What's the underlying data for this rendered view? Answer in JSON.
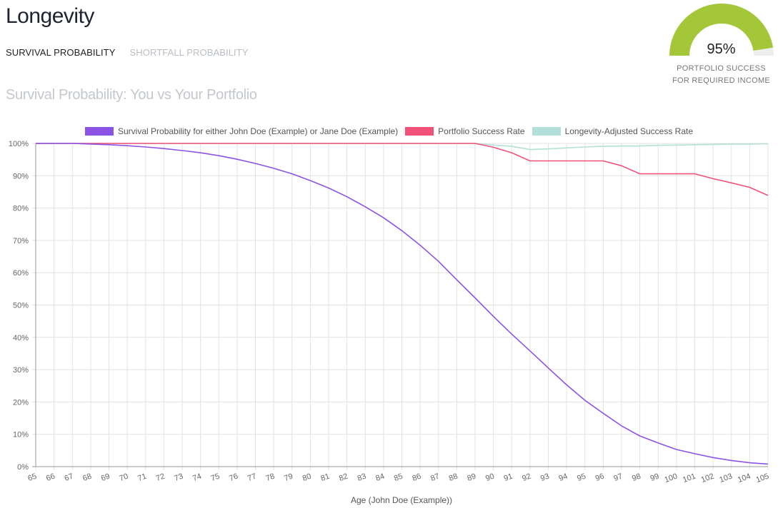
{
  "page": {
    "title": "Longevity",
    "tabs": [
      {
        "label": "SURVIVAL PROBABILITY",
        "active": true
      },
      {
        "label": "SHORTFALL PROBABILITY",
        "active": false
      }
    ],
    "chart_title": "Survival Probability: You vs Your Portfolio"
  },
  "gauge": {
    "value_text": "95%",
    "value": 0.95,
    "label_line1": "PORTFOLIO SUCCESS",
    "label_line2": "FOR REQUIRED INCOME",
    "fill_color": "#a4c639",
    "track_color": "#eeeeee"
  },
  "chart_data": {
    "type": "line",
    "xlabel": "Age (John Doe (Example))",
    "ylabel": "",
    "x": [
      65,
      66,
      67,
      68,
      69,
      70,
      71,
      72,
      73,
      74,
      75,
      76,
      77,
      78,
      79,
      80,
      81,
      82,
      83,
      84,
      85,
      86,
      87,
      88,
      89,
      90,
      91,
      92,
      93,
      94,
      95,
      96,
      97,
      98,
      99,
      100,
      101,
      102,
      103,
      104,
      105
    ],
    "x_tick_labels": [
      "65",
      "66",
      "67",
      "68",
      "69",
      "70",
      "71",
      "72",
      "73",
      "74",
      "75",
      "76",
      "77",
      "78",
      "79",
      "80",
      "81",
      "82",
      "83",
      "84",
      "85",
      "86",
      "87",
      "88",
      "89",
      "90",
      "91",
      "92",
      "93",
      "94",
      "95",
      "96",
      "97",
      "98",
      "99",
      "100",
      "101",
      "102",
      "103",
      "104",
      "105"
    ],
    "ylim": [
      0,
      100
    ],
    "y_ticks": [
      0,
      10,
      20,
      30,
      40,
      50,
      60,
      70,
      80,
      90,
      100
    ],
    "y_tick_labels": [
      "0%",
      "10%",
      "20%",
      "30%",
      "40%",
      "50%",
      "60%",
      "70%",
      "80%",
      "90%",
      "100%"
    ],
    "grid": true,
    "legend_position": "top",
    "series": [
      {
        "name": "Survival Probability for either John Doe (Example) or Jane Doe (Example)",
        "color": "#8c54e6",
        "values": [
          100,
          100,
          100,
          99.8,
          99.6,
          99.3,
          98.9,
          98.4,
          97.8,
          97.1,
          96.2,
          95.1,
          93.8,
          92.3,
          90.6,
          88.5,
          86.2,
          83.5,
          80.4,
          77.0,
          73.0,
          68.5,
          63.5,
          57.8,
          52.2,
          46.5,
          41.0,
          35.8,
          30.5,
          25.3,
          20.5,
          16.5,
          12.6,
          9.5,
          7.3,
          5.3,
          4.0,
          2.8,
          1.9,
          1.2,
          0.8
        ]
      },
      {
        "name": "Portfolio Success Rate",
        "color": "#f2527a",
        "values": [
          100,
          100,
          100,
          100,
          100,
          100,
          100,
          100,
          100,
          100,
          100,
          100,
          100,
          100,
          100,
          100,
          100,
          100,
          100,
          100,
          100,
          100,
          100,
          100,
          100,
          98.8,
          97.1,
          94.6,
          94.6,
          94.6,
          94.6,
          94.6,
          93.1,
          90.6,
          90.6,
          90.6,
          90.6,
          89.1,
          87.8,
          86.4,
          83.9
        ]
      },
      {
        "name": "Longevity-Adjusted Success Rate",
        "color": "#b3e0d8",
        "values": [
          100,
          100,
          100,
          100,
          100,
          100,
          100,
          100,
          100,
          100,
          100,
          100,
          100,
          100,
          100,
          100,
          100,
          100,
          100,
          100,
          100,
          100,
          100,
          100,
          100,
          99.5,
          99.1,
          98.1,
          98.3,
          98.6,
          98.9,
          99.1,
          99.2,
          99.2,
          99.4,
          99.5,
          99.6,
          99.7,
          99.8,
          99.8,
          99.9
        ]
      }
    ]
  }
}
